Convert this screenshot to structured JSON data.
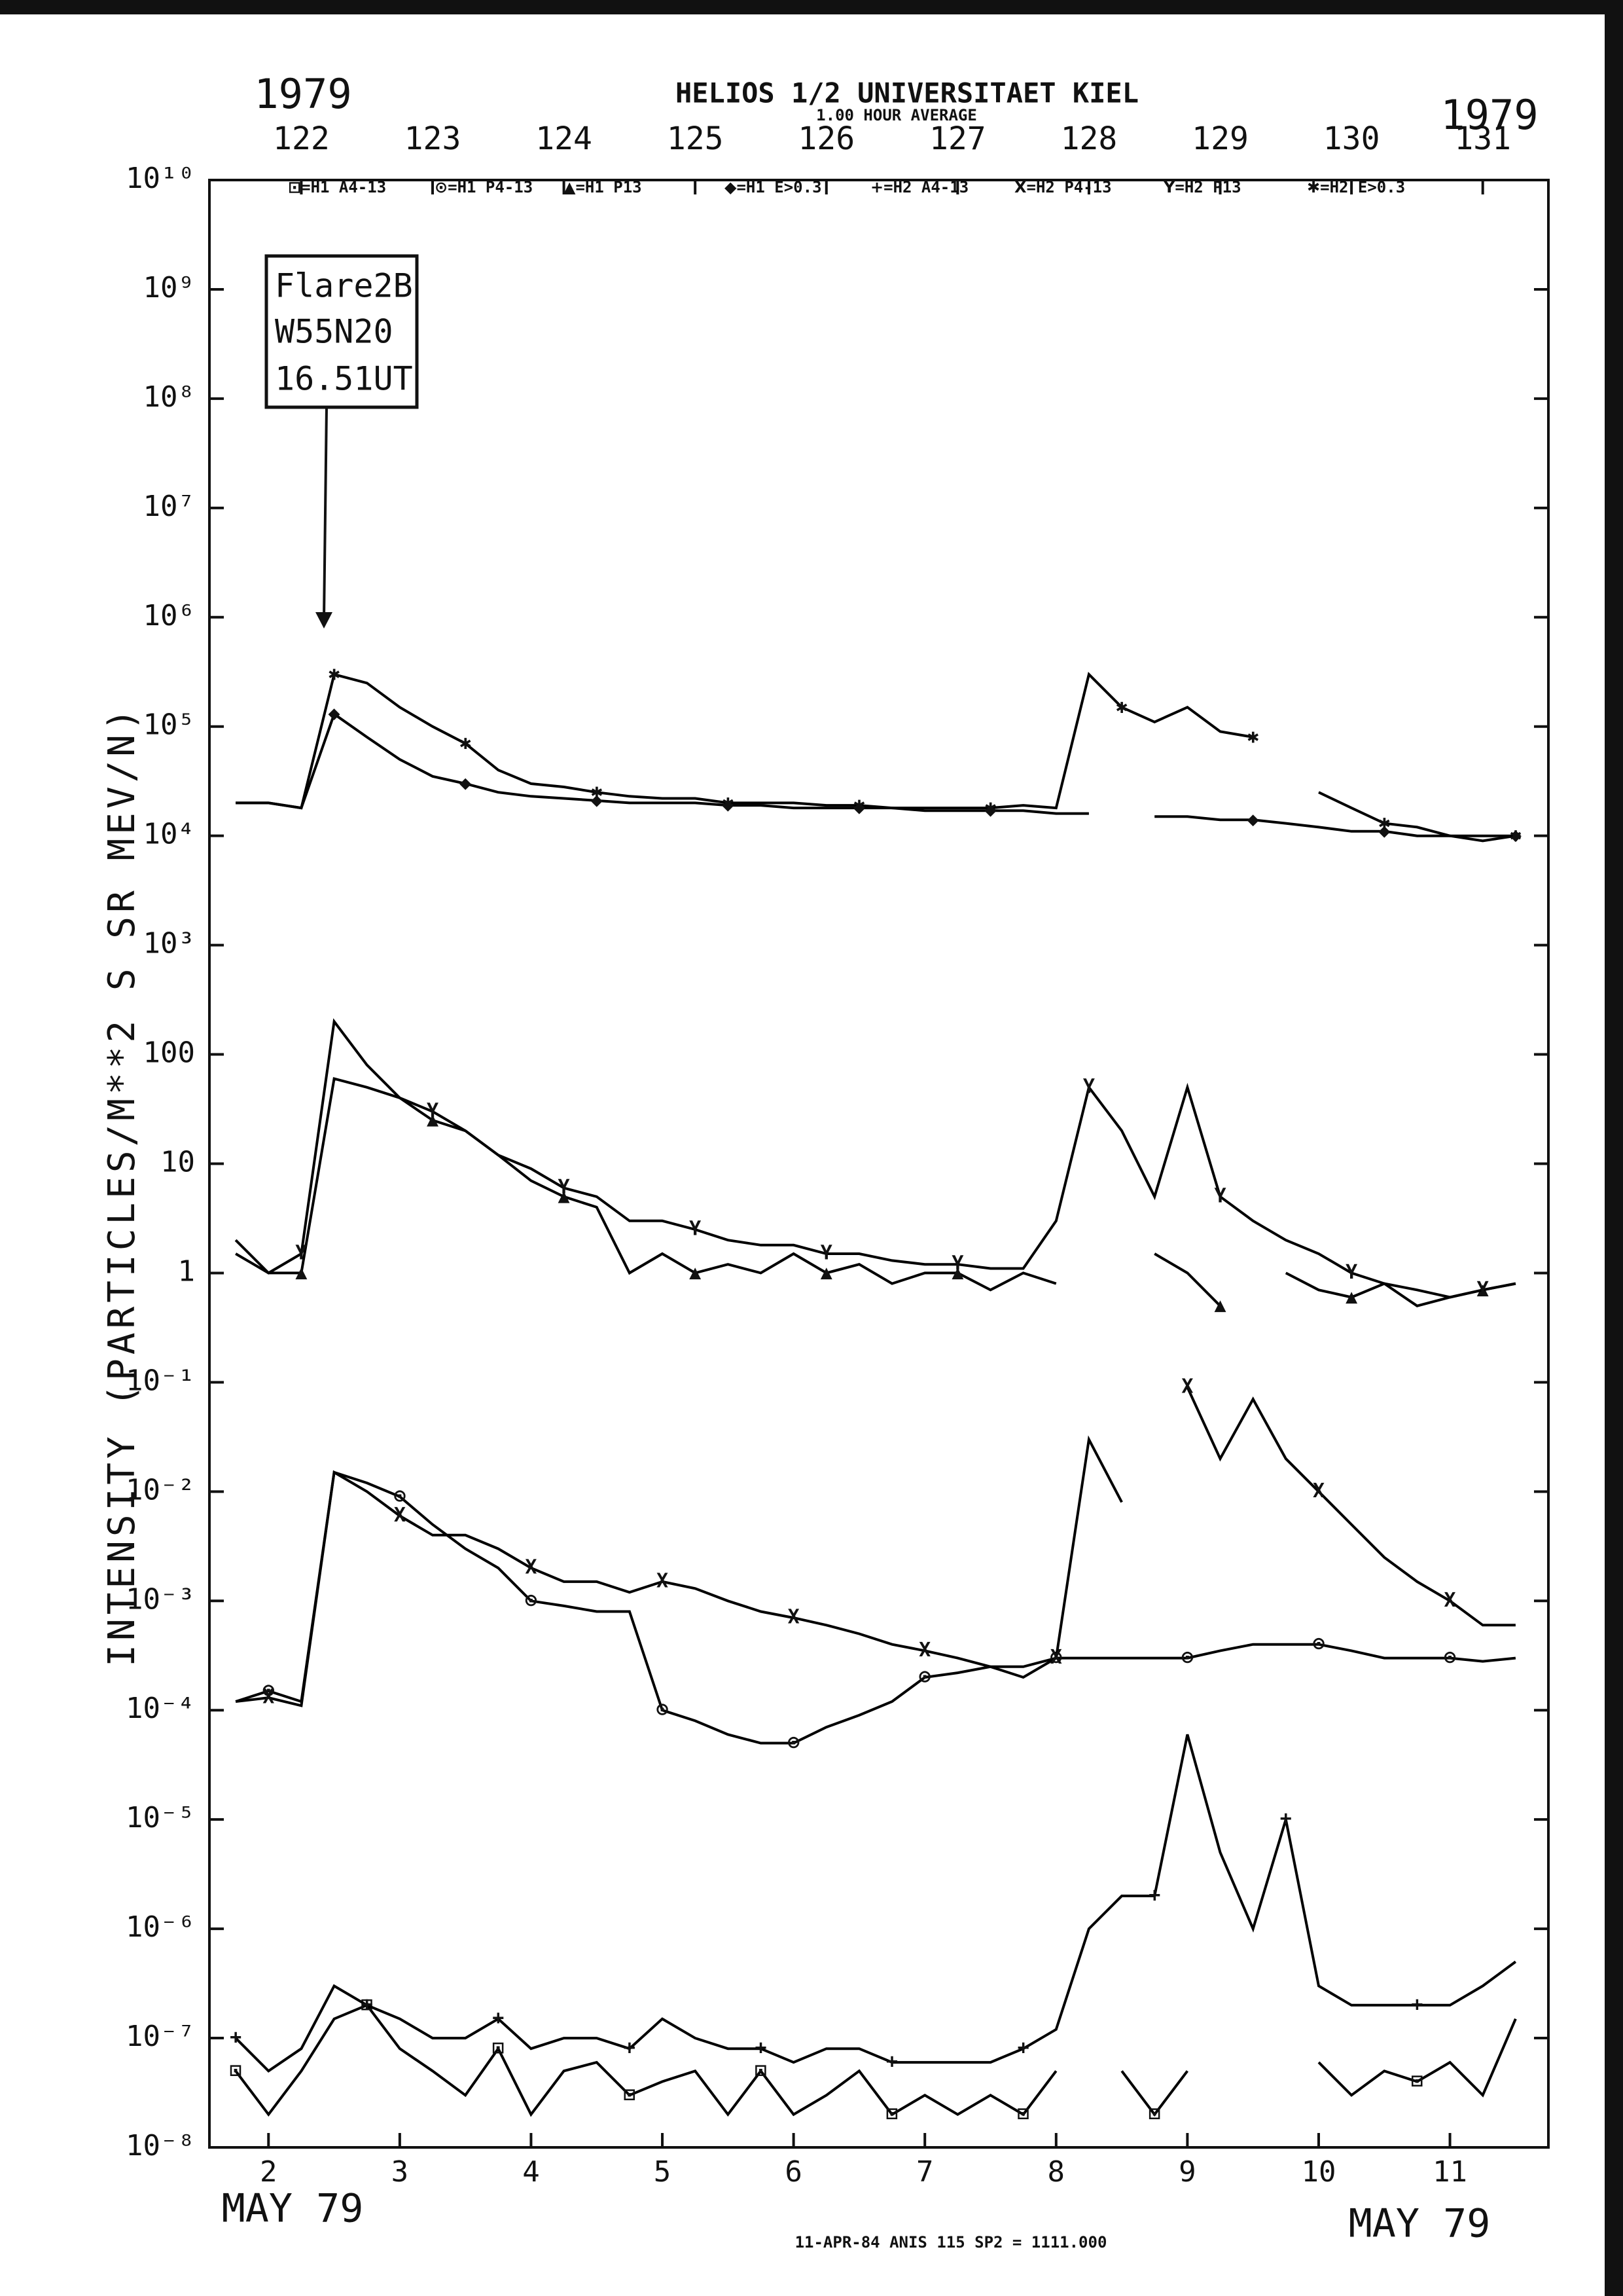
{
  "chart_data": {
    "type": "line",
    "title": "HELIOS 1/2  UNIVERSITAET KIEL",
    "subtitle": "1.00 HOUR AVERAGE",
    "x2label": [
      "1979",
      "1979"
    ],
    "xlabel": [
      "MAY 79",
      "MAY 79"
    ],
    "ylabel": "INTENSITY (PARTICLES/M**2 S SR MEV/N)",
    "footer": "11-APR-84 ANIS 115 SP2 = 1111.000",
    "annotations": [
      "Flare2B",
      "W55N20",
      "16.51UT"
    ],
    "legend_separator": "=",
    "log_y": true,
    "xlim": [
      1.55,
      11.75
    ],
    "xticks": [
      2,
      3,
      4,
      5,
      6,
      7,
      8,
      9,
      10,
      11
    ],
    "x2lim": [
      121.3,
      131.5
    ],
    "x2ticks": [
      122,
      123,
      124,
      125,
      126,
      127,
      128,
      129,
      130,
      131
    ],
    "ylim": [
      1e-08,
      10000000000
    ],
    "yticks": [
      {
        "value": 1e-08,
        "label": "10⁻⁸"
      },
      {
        "value": 1e-07,
        "label": "10⁻⁷"
      },
      {
        "value": 1e-06,
        "label": "10⁻⁶"
      },
      {
        "value": 1e-05,
        "label": "10⁻⁵"
      },
      {
        "value": 0.0001,
        "label": "10⁻⁴"
      },
      {
        "value": 0.001,
        "label": "10⁻³"
      },
      {
        "value": 0.01,
        "label": "10⁻²"
      },
      {
        "value": 0.1,
        "label": "10⁻¹"
      },
      1,
      10,
      100,
      {
        "value": 1000,
        "label": "10³"
      },
      {
        "value": 10000,
        "label": "10⁴"
      },
      {
        "value": 100000,
        "label": "10⁵"
      },
      {
        "value": 1000000,
        "label": "10⁶"
      },
      {
        "value": 10000000,
        "label": "10⁷"
      },
      {
        "value": 100000000,
        "label": "10⁸"
      },
      {
        "value": 1000000000,
        "label": "10⁹"
      },
      {
        "value": 10000000000,
        "label": "10¹⁰"
      }
    ],
    "x": [
      1.75,
      2.0,
      2.25,
      2.5,
      2.75,
      3.0,
      3.25,
      3.5,
      3.75,
      4.0,
      4.25,
      4.5,
      4.75,
      5.0,
      5.25,
      5.5,
      5.75,
      6.0,
      6.25,
      6.5,
      6.75,
      7.0,
      7.25,
      7.5,
      7.75,
      8.0,
      8.25,
      8.5,
      8.75,
      9.0,
      9.25,
      9.5,
      9.75,
      10.0,
      10.25,
      10.5,
      10.75,
      11.0,
      11.25,
      11.5
    ],
    "series": [
      {
        "name": "H1 A4-13",
        "marker": "⊡",
        "color": "#000000",
        "values": [
          5e-08,
          2e-08,
          5e-08,
          1.5e-07,
          2e-07,
          8e-08,
          5e-08,
          3e-08,
          8e-08,
          2e-08,
          5e-08,
          6e-08,
          3e-08,
          4e-08,
          5e-08,
          2e-08,
          5e-08,
          2e-08,
          3e-08,
          5e-08,
          2e-08,
          3e-08,
          2e-08,
          3e-08,
          2e-08,
          5e-08,
          null,
          5e-08,
          2e-08,
          5e-08,
          null,
          null,
          null,
          6e-08,
          3e-08,
          5e-08,
          4e-08,
          6e-08,
          3e-08,
          1.5e-07
        ]
      },
      {
        "name": "H1 P4-13",
        "marker": "⊙",
        "color": "#000000",
        "values": [
          0.00012,
          0.00015,
          0.00012,
          0.015,
          0.012,
          0.009,
          0.005,
          0.003,
          0.002,
          0.001,
          0.0009,
          0.0008,
          0.0008,
          0.0001,
          8e-05,
          6e-05,
          5e-05,
          5e-05,
          7e-05,
          9e-05,
          0.00012,
          0.0002,
          0.00022,
          0.00025,
          0.00025,
          0.0003,
          0.0003,
          0.0003,
          0.0003,
          0.0003,
          0.00035,
          0.0004,
          0.0004,
          0.0004,
          0.00035,
          0.0003,
          0.0003,
          0.0003,
          0.00028,
          0.0003
        ]
      },
      {
        "name": "H1 P13",
        "marker": "▲",
        "color": "#000000",
        "values": [
          2,
          1,
          1,
          60,
          50,
          40,
          25,
          20,
          12,
          7,
          5,
          4,
          1,
          1.5,
          1,
          1.2,
          1,
          1.5,
          1,
          1.2,
          0.8,
          1,
          1,
          0.7,
          1,
          0.8,
          null,
          null,
          1.5,
          1,
          0.5,
          null,
          1,
          0.7,
          0.6,
          0.8,
          0.5,
          0.6,
          0.7,
          0.8
        ]
      },
      {
        "name": "H1 E>0.3",
        "marker": "◆",
        "color": "#000000",
        "values": [
          20000,
          20000,
          18000,
          130000,
          80000,
          50000,
          35000,
          30000,
          25000,
          23000,
          22000,
          21000,
          20000,
          20000,
          20000,
          19000,
          19000,
          18000,
          18000,
          18000,
          18000,
          17000,
          17000,
          17000,
          17000,
          16000,
          16000,
          null,
          15000,
          15000,
          14000,
          14000,
          13000,
          12000,
          11000,
          11000,
          10000,
          10000,
          9000,
          10000
        ]
      },
      {
        "name": "H2 A4-13",
        "marker": "+",
        "color": "#000000",
        "values": [
          1e-07,
          5e-08,
          8e-08,
          3e-07,
          2e-07,
          1.5e-07,
          1e-07,
          1e-07,
          1.5e-07,
          8e-08,
          1e-07,
          1e-07,
          8e-08,
          1.5e-07,
          1e-07,
          8e-08,
          8e-08,
          6e-08,
          8e-08,
          8e-08,
          6e-08,
          6e-08,
          6e-08,
          6e-08,
          8e-08,
          1.2e-07,
          1e-06,
          2e-06,
          2e-06,
          6e-05,
          5e-06,
          1e-06,
          1e-05,
          3e-07,
          2e-07,
          2e-07,
          2e-07,
          2e-07,
          3e-07,
          5e-07
        ]
      },
      {
        "name": "H2 P4-13",
        "marker": "X",
        "color": "#000000",
        "values": [
          0.00012,
          0.00013,
          0.00011,
          0.015,
          0.01,
          0.006,
          0.004,
          0.004,
          0.003,
          0.002,
          0.0015,
          0.0015,
          0.0012,
          0.0015,
          0.0013,
          0.001,
          0.0008,
          0.0007,
          0.0006,
          0.0005,
          0.0004,
          0.00035,
          0.0003,
          0.00025,
          0.0002,
          0.0003,
          0.03,
          0.008,
          null,
          0.09,
          0.02,
          0.07,
          0.02,
          0.01,
          0.005,
          0.0025,
          0.0015,
          0.001,
          0.0006,
          0.0006
        ]
      },
      {
        "name": "H2 P13",
        "marker": "Y",
        "color": "#000000",
        "values": [
          1.5,
          1,
          1.5,
          200,
          80,
          40,
          30,
          20,
          12,
          9,
          6,
          5,
          3,
          3,
          2.5,
          2,
          1.8,
          1.8,
          1.5,
          1.5,
          1.3,
          1.2,
          1.2,
          1.1,
          1.1,
          3,
          50,
          20,
          5,
          50,
          5,
          3,
          2,
          1.5,
          1,
          0.8,
          0.7,
          0.6,
          0.7,
          0.8
        ]
      },
      {
        "name": "H2 E>0.3",
        "marker": "✱",
        "color": "#000000",
        "values": [
          20000,
          20000,
          18000,
          300000,
          250000,
          150000,
          100000,
          70000,
          40000,
          30000,
          28000,
          25000,
          23000,
          22000,
          22000,
          20000,
          20000,
          20000,
          19000,
          19000,
          18000,
          18000,
          18000,
          18000,
          19000,
          18000,
          300000,
          150000,
          110000,
          150000,
          90000,
          80000,
          null,
          25000,
          18000,
          13000,
          12000,
          10000,
          10000,
          10000
        ]
      }
    ]
  }
}
